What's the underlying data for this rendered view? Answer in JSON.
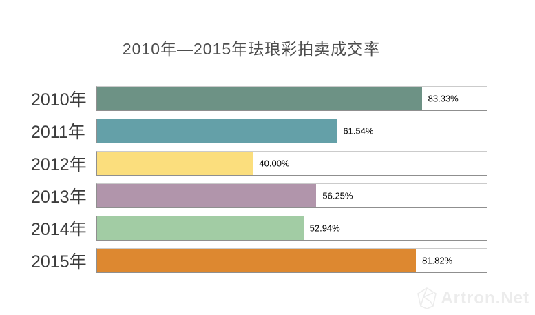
{
  "title": "2010年—2015年珐琅彩拍卖成交率",
  "chart_data": {
    "type": "bar",
    "orientation": "horizontal",
    "title": "2010年—2015年珐琅彩拍卖成交率",
    "categories": [
      "2010年",
      "2011年",
      "2012年",
      "2013年",
      "2014年",
      "2015年"
    ],
    "values": [
      83.33,
      61.54,
      40.0,
      56.25,
      52.94,
      81.82
    ],
    "value_labels": [
      "83.33%",
      "61.54%",
      "40.00%",
      "56.25%",
      "52.94%",
      "81.82%"
    ],
    "bar_colors": [
      "#6D9285",
      "#64A0A8",
      "#FBDE7D",
      "#B195AB",
      "#A2CCA4",
      "#DD8830"
    ],
    "xlabel": "",
    "ylabel": "",
    "xlim": [
      0,
      100
    ],
    "grid": false,
    "legend": "none",
    "track_border_color": "#8f8f8f",
    "track_background": "#ffffff"
  },
  "watermark": {
    "text": "Artron.Net",
    "logo_icon": "artron-diamond-logo"
  }
}
